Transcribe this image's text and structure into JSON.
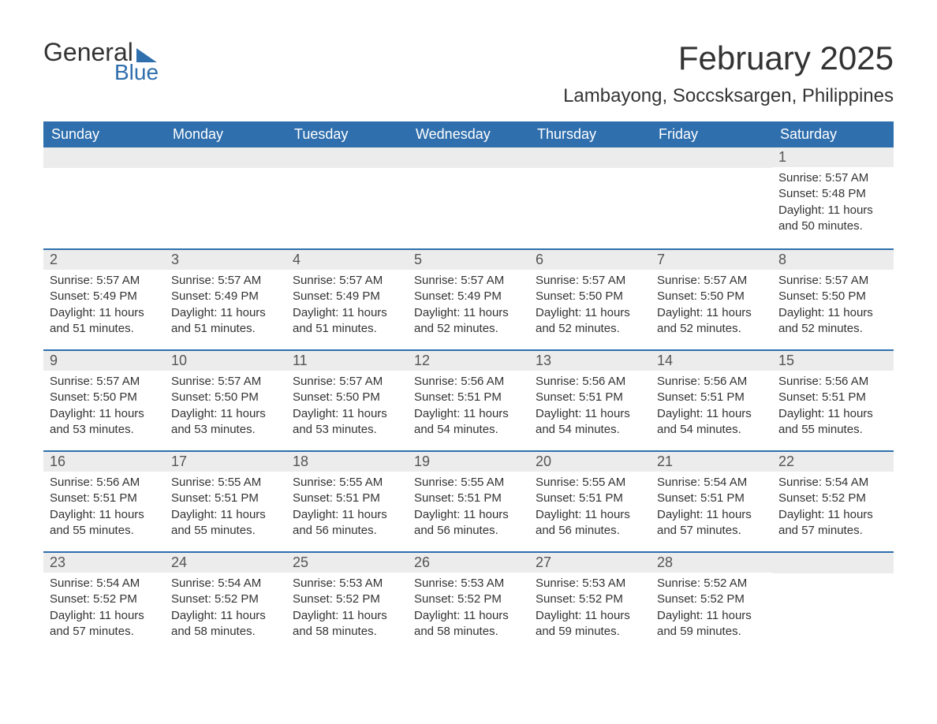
{
  "logo": {
    "text1": "General",
    "text2": "Blue"
  },
  "title": "February 2025",
  "location": "Lambayong, Soccsksargen, Philippines",
  "colors": {
    "header_bg": "#2f6fad",
    "header_text": "#ffffff",
    "row_divider": "#2f6fad",
    "daynum_bg": "#ececec",
    "body_text": "#333333",
    "page_bg": "#ffffff"
  },
  "dayNames": [
    "Sunday",
    "Monday",
    "Tuesday",
    "Wednesday",
    "Thursday",
    "Friday",
    "Saturday"
  ],
  "weeks": [
    [
      {
        "n": "",
        "sr": "",
        "ss": "",
        "dl": ""
      },
      {
        "n": "",
        "sr": "",
        "ss": "",
        "dl": ""
      },
      {
        "n": "",
        "sr": "",
        "ss": "",
        "dl": ""
      },
      {
        "n": "",
        "sr": "",
        "ss": "",
        "dl": ""
      },
      {
        "n": "",
        "sr": "",
        "ss": "",
        "dl": ""
      },
      {
        "n": "",
        "sr": "",
        "ss": "",
        "dl": ""
      },
      {
        "n": "1",
        "sr": "Sunrise: 5:57 AM",
        "ss": "Sunset: 5:48 PM",
        "dl": "Daylight: 11 hours and 50 minutes."
      }
    ],
    [
      {
        "n": "2",
        "sr": "Sunrise: 5:57 AM",
        "ss": "Sunset: 5:49 PM",
        "dl": "Daylight: 11 hours and 51 minutes."
      },
      {
        "n": "3",
        "sr": "Sunrise: 5:57 AM",
        "ss": "Sunset: 5:49 PM",
        "dl": "Daylight: 11 hours and 51 minutes."
      },
      {
        "n": "4",
        "sr": "Sunrise: 5:57 AM",
        "ss": "Sunset: 5:49 PM",
        "dl": "Daylight: 11 hours and 51 minutes."
      },
      {
        "n": "5",
        "sr": "Sunrise: 5:57 AM",
        "ss": "Sunset: 5:49 PM",
        "dl": "Daylight: 11 hours and 52 minutes."
      },
      {
        "n": "6",
        "sr": "Sunrise: 5:57 AM",
        "ss": "Sunset: 5:50 PM",
        "dl": "Daylight: 11 hours and 52 minutes."
      },
      {
        "n": "7",
        "sr": "Sunrise: 5:57 AM",
        "ss": "Sunset: 5:50 PM",
        "dl": "Daylight: 11 hours and 52 minutes."
      },
      {
        "n": "8",
        "sr": "Sunrise: 5:57 AM",
        "ss": "Sunset: 5:50 PM",
        "dl": "Daylight: 11 hours and 52 minutes."
      }
    ],
    [
      {
        "n": "9",
        "sr": "Sunrise: 5:57 AM",
        "ss": "Sunset: 5:50 PM",
        "dl": "Daylight: 11 hours and 53 minutes."
      },
      {
        "n": "10",
        "sr": "Sunrise: 5:57 AM",
        "ss": "Sunset: 5:50 PM",
        "dl": "Daylight: 11 hours and 53 minutes."
      },
      {
        "n": "11",
        "sr": "Sunrise: 5:57 AM",
        "ss": "Sunset: 5:50 PM",
        "dl": "Daylight: 11 hours and 53 minutes."
      },
      {
        "n": "12",
        "sr": "Sunrise: 5:56 AM",
        "ss": "Sunset: 5:51 PM",
        "dl": "Daylight: 11 hours and 54 minutes."
      },
      {
        "n": "13",
        "sr": "Sunrise: 5:56 AM",
        "ss": "Sunset: 5:51 PM",
        "dl": "Daylight: 11 hours and 54 minutes."
      },
      {
        "n": "14",
        "sr": "Sunrise: 5:56 AM",
        "ss": "Sunset: 5:51 PM",
        "dl": "Daylight: 11 hours and 54 minutes."
      },
      {
        "n": "15",
        "sr": "Sunrise: 5:56 AM",
        "ss": "Sunset: 5:51 PM",
        "dl": "Daylight: 11 hours and 55 minutes."
      }
    ],
    [
      {
        "n": "16",
        "sr": "Sunrise: 5:56 AM",
        "ss": "Sunset: 5:51 PM",
        "dl": "Daylight: 11 hours and 55 minutes."
      },
      {
        "n": "17",
        "sr": "Sunrise: 5:55 AM",
        "ss": "Sunset: 5:51 PM",
        "dl": "Daylight: 11 hours and 55 minutes."
      },
      {
        "n": "18",
        "sr": "Sunrise: 5:55 AM",
        "ss": "Sunset: 5:51 PM",
        "dl": "Daylight: 11 hours and 56 minutes."
      },
      {
        "n": "19",
        "sr": "Sunrise: 5:55 AM",
        "ss": "Sunset: 5:51 PM",
        "dl": "Daylight: 11 hours and 56 minutes."
      },
      {
        "n": "20",
        "sr": "Sunrise: 5:55 AM",
        "ss": "Sunset: 5:51 PM",
        "dl": "Daylight: 11 hours and 56 minutes."
      },
      {
        "n": "21",
        "sr": "Sunrise: 5:54 AM",
        "ss": "Sunset: 5:51 PM",
        "dl": "Daylight: 11 hours and 57 minutes."
      },
      {
        "n": "22",
        "sr": "Sunrise: 5:54 AM",
        "ss": "Sunset: 5:52 PM",
        "dl": "Daylight: 11 hours and 57 minutes."
      }
    ],
    [
      {
        "n": "23",
        "sr": "Sunrise: 5:54 AM",
        "ss": "Sunset: 5:52 PM",
        "dl": "Daylight: 11 hours and 57 minutes."
      },
      {
        "n": "24",
        "sr": "Sunrise: 5:54 AM",
        "ss": "Sunset: 5:52 PM",
        "dl": "Daylight: 11 hours and 58 minutes."
      },
      {
        "n": "25",
        "sr": "Sunrise: 5:53 AM",
        "ss": "Sunset: 5:52 PM",
        "dl": "Daylight: 11 hours and 58 minutes."
      },
      {
        "n": "26",
        "sr": "Sunrise: 5:53 AM",
        "ss": "Sunset: 5:52 PM",
        "dl": "Daylight: 11 hours and 58 minutes."
      },
      {
        "n": "27",
        "sr": "Sunrise: 5:53 AM",
        "ss": "Sunset: 5:52 PM",
        "dl": "Daylight: 11 hours and 59 minutes."
      },
      {
        "n": "28",
        "sr": "Sunrise: 5:52 AM",
        "ss": "Sunset: 5:52 PM",
        "dl": "Daylight: 11 hours and 59 minutes."
      },
      {
        "n": "",
        "sr": "",
        "ss": "",
        "dl": ""
      }
    ]
  ]
}
